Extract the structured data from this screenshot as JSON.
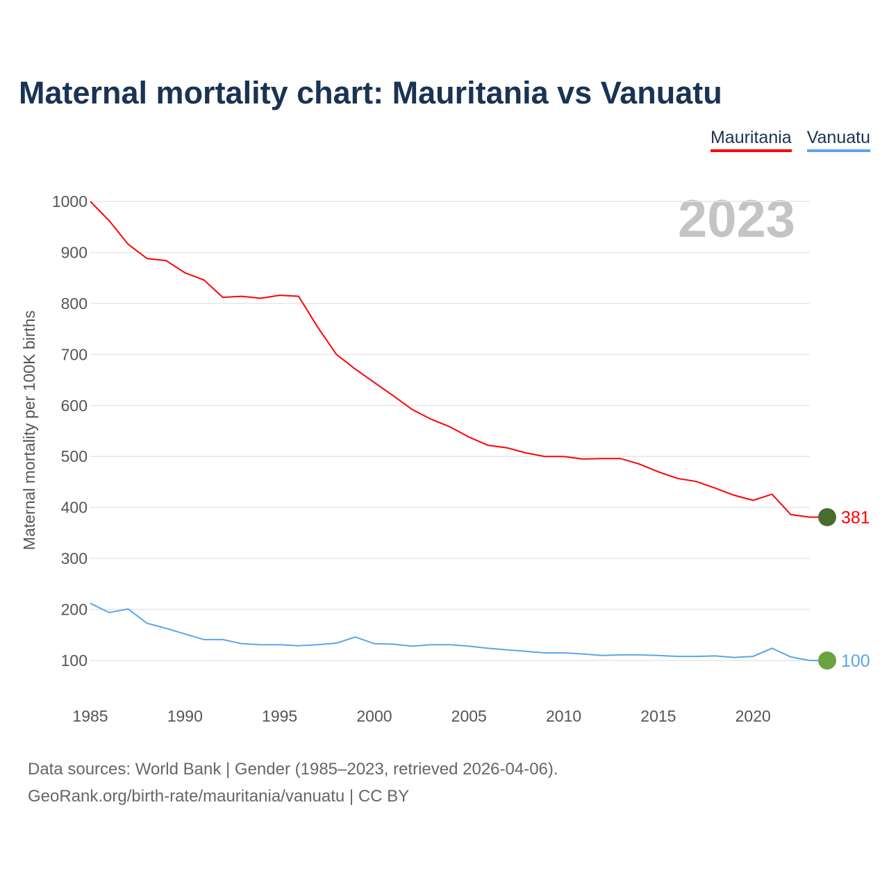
{
  "title": "Maternal mortality chart: Mauritania vs Vanuatu",
  "year_label": "2023",
  "footer": {
    "line1": "Data sources: World Bank | Gender (1985–2023, retrieved 2026-04-06).",
    "line2": "GeoRank.org/birth-rate/mauritania/vanuatu | CC BY"
  },
  "chart_data": {
    "type": "line",
    "title": "Maternal mortality chart: Mauritania vs Vanuatu",
    "xlabel": "",
    "ylabel": "Maternal mortality per 100K births",
    "xlim": [
      1985,
      2023
    ],
    "ylim": [
      100,
      1000
    ],
    "x_ticks": [
      1985,
      1990,
      1995,
      2000,
      2005,
      2010,
      2015,
      2020
    ],
    "y_ticks": [
      100,
      200,
      300,
      400,
      500,
      600,
      700,
      800,
      900,
      1000
    ],
    "grid": true,
    "legend_position": "top-right",
    "x": [
      1985,
      1986,
      1987,
      1988,
      1989,
      1990,
      1991,
      1992,
      1993,
      1994,
      1995,
      1996,
      1997,
      1998,
      1999,
      2000,
      2001,
      2002,
      2003,
      2004,
      2005,
      2006,
      2007,
      2008,
      2009,
      2010,
      2011,
      2012,
      2013,
      2014,
      2015,
      2016,
      2017,
      2018,
      2019,
      2020,
      2021,
      2022,
      2023
    ],
    "series": [
      {
        "name": "Mauritania",
        "color": "#ff0000",
        "end_label": "381",
        "flag_color": "#4a6b2e",
        "values": [
          1000,
          962,
          916,
          888,
          884,
          860,
          846,
          812,
          814,
          810,
          816,
          814,
          754,
          700,
          671,
          645,
          619,
          592,
          573,
          558,
          538,
          522,
          517,
          507,
          500,
          500,
          495,
          496,
          496,
          485,
          470,
          457,
          451,
          438,
          424,
          414,
          426,
          386,
          381
        ]
      },
      {
        "name": "Vanuatu",
        "color": "#5aa5ec",
        "end_label": "100",
        "flag_color": "#6aa340",
        "values": [
          212,
          194,
          201,
          173,
          163,
          152,
          141,
          141,
          133,
          131,
          131,
          129,
          131,
          134,
          146,
          133,
          132,
          128,
          131,
          131,
          128,
          124,
          121,
          118,
          115,
          115,
          113,
          110,
          111,
          111,
          110,
          108,
          108,
          109,
          106,
          108,
          124,
          107,
          100
        ]
      }
    ]
  }
}
